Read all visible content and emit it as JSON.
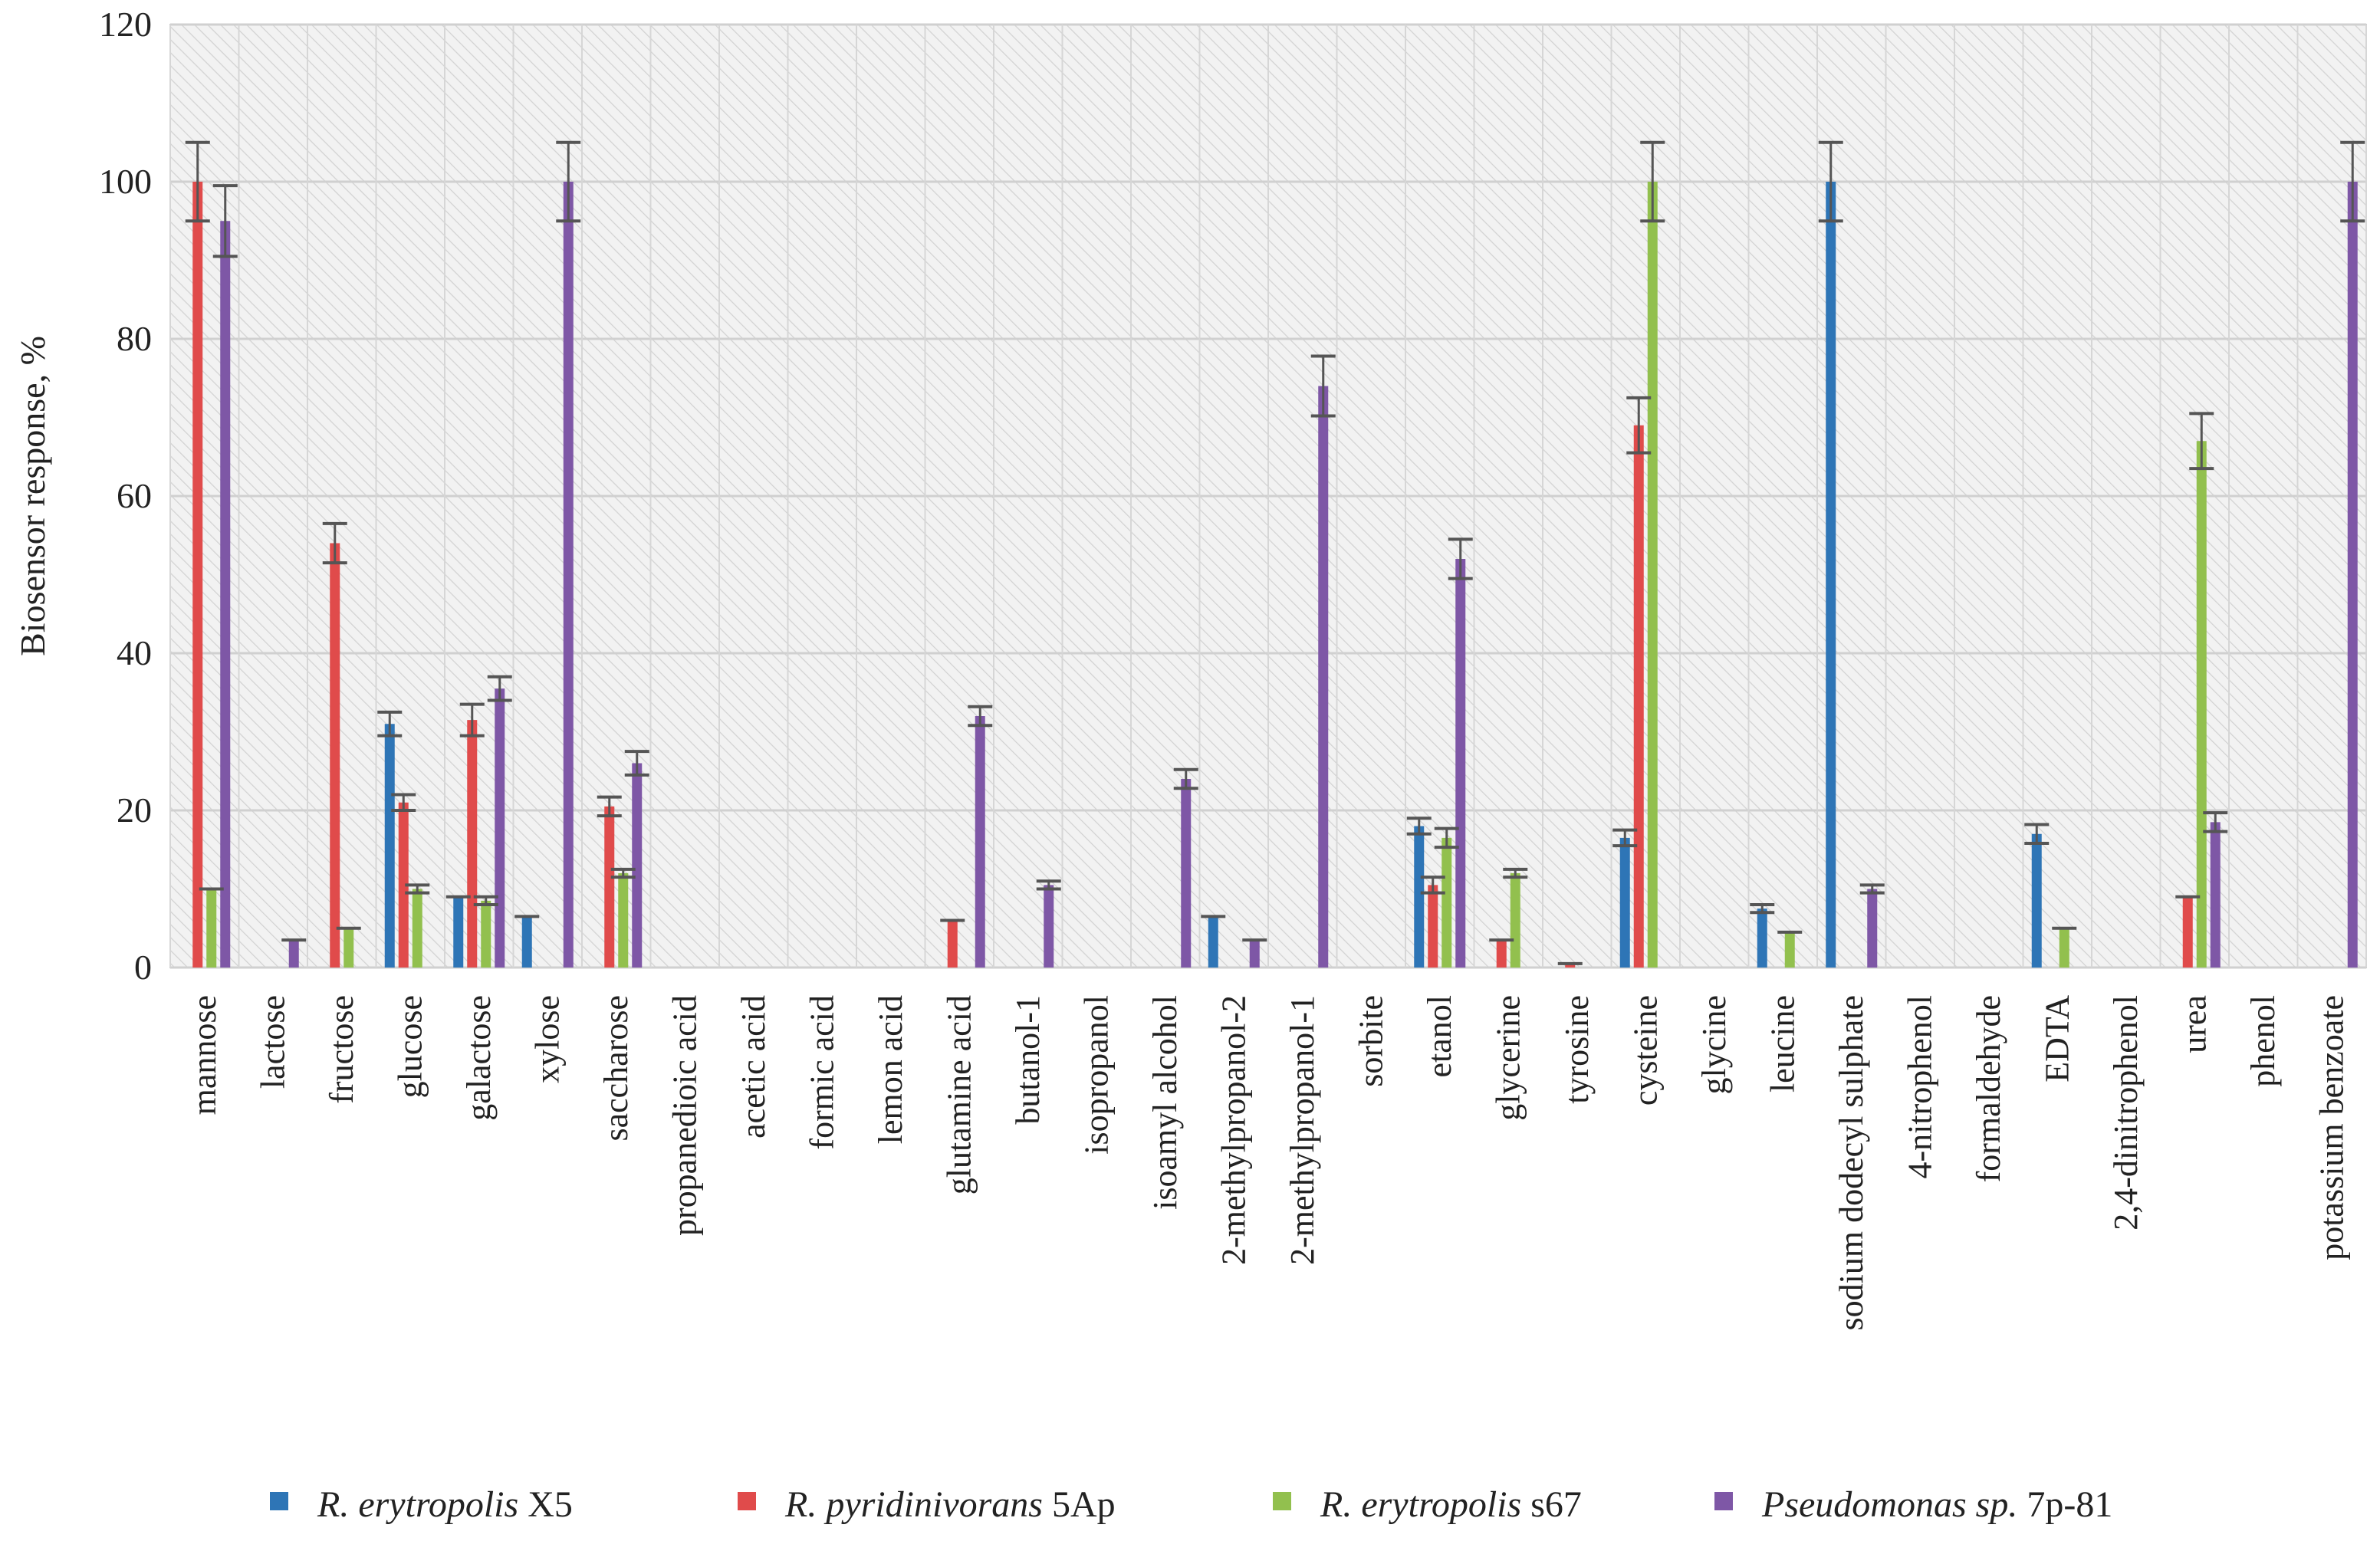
{
  "chart_data": {
    "type": "bar",
    "title": "",
    "xlabel": "",
    "ylabel": "Biosensor response, %",
    "ylim": [
      0,
      120
    ],
    "yticks": [
      0,
      20,
      40,
      60,
      80,
      100,
      120
    ],
    "grid": true,
    "legend_position": "bottom",
    "categories": [
      "mannose",
      "lactose",
      "fructose",
      "glucose",
      "galactose",
      "xylose",
      "saccharose",
      "propanedioic acid",
      "acetic acid",
      "formic acid",
      "lemon acid",
      "glutamine acid",
      "butanol-1",
      "isopropanol",
      "isoamyl alcohol",
      "2-methylpropanol-2",
      "2-methylpropanol-1",
      "sorbite",
      "etanol",
      "glycerine",
      "tyrosine",
      "cysteine",
      "glycine",
      "leucine",
      "sodium dodecyl sulphate",
      "4-nitrophenol",
      "formaldehyde",
      "EDTA",
      "2,4-dinitrophenol",
      "urea",
      "phenol",
      "potassium benzoate"
    ],
    "series": [
      {
        "name": "R. erytropolis X5",
        "legend_italic": "R. erytropolis",
        "legend_rest": " X5",
        "color": "#2e75b6",
        "values": [
          0,
          0,
          0,
          31,
          9,
          6.5,
          0,
          0,
          0,
          0,
          0,
          0,
          0,
          0,
          0,
          6.5,
          0,
          0,
          18,
          0,
          0,
          16.5,
          0,
          7.5,
          100,
          0,
          0,
          17,
          0,
          0,
          0,
          0
        ],
        "errors": [
          0,
          0,
          0,
          1.5,
          0,
          0,
          0,
          0,
          0,
          0,
          0,
          0,
          0,
          0,
          0,
          0,
          0,
          0,
          1,
          0,
          0,
          1,
          0,
          0.5,
          5,
          0,
          0,
          1.2,
          0,
          0,
          0,
          0
        ]
      },
      {
        "name": "R. pyridinivorans 5Ap",
        "legend_italic": "R. pyridinivorans",
        "legend_rest": " 5Ap",
        "color": "#e04b4b",
        "values": [
          100,
          0,
          54,
          21,
          31.5,
          0,
          20.5,
          0,
          0,
          0,
          0,
          6,
          0,
          0,
          0,
          0,
          0,
          0,
          10.5,
          3.5,
          0.5,
          69,
          0,
          0,
          0,
          0,
          0,
          0,
          0,
          9,
          0,
          0
        ],
        "errors": [
          5,
          0,
          2.5,
          1,
          2,
          0,
          1.2,
          0,
          0,
          0,
          0,
          0,
          0,
          0,
          0,
          0,
          0,
          0,
          1,
          0,
          0,
          3.5,
          0,
          0,
          0,
          0,
          0,
          0,
          0,
          0,
          0,
          0
        ]
      },
      {
        "name": "R. erytropolis s67",
        "legend_italic": "R. erytropolis",
        "legend_rest": " s67",
        "color": "#92c04e",
        "values": [
          10,
          0,
          5,
          10,
          8.5,
          0,
          12,
          0,
          0,
          0,
          0,
          0,
          0,
          0,
          0,
          0,
          0,
          0,
          16.5,
          12,
          0,
          100,
          0,
          4.5,
          0,
          0,
          0,
          5,
          0,
          67,
          0,
          0
        ],
        "errors": [
          0,
          0,
          0,
          0.5,
          0.5,
          0,
          0.5,
          0,
          0,
          0,
          0,
          0,
          0,
          0,
          0,
          0,
          0,
          0,
          1.2,
          0.5,
          0,
          5,
          0,
          0,
          0,
          0,
          0,
          0,
          0,
          3.5,
          0,
          0
        ]
      },
      {
        "name": "Pseudomonas sp. 7p-81",
        "legend_italic": "Pseudomonas sp.",
        "legend_rest": " 7p-81",
        "color": "#7e57a6",
        "values": [
          95,
          3.5,
          0,
          0,
          35.5,
          100,
          26,
          0,
          0,
          0,
          0,
          32,
          10.5,
          0,
          24,
          3.5,
          74,
          0,
          52,
          0,
          0,
          0,
          0,
          0,
          10,
          0,
          0,
          0,
          0,
          18.5,
          0,
          100
        ],
        "errors": [
          4.5,
          0,
          0,
          0,
          1.5,
          5,
          1.5,
          0,
          0,
          0,
          0,
          1.2,
          0.5,
          0,
          1.2,
          0,
          3.8,
          0,
          2.5,
          0,
          0,
          0,
          0,
          0,
          0.5,
          0,
          0,
          0,
          0,
          1.2,
          0,
          5
        ]
      }
    ]
  }
}
